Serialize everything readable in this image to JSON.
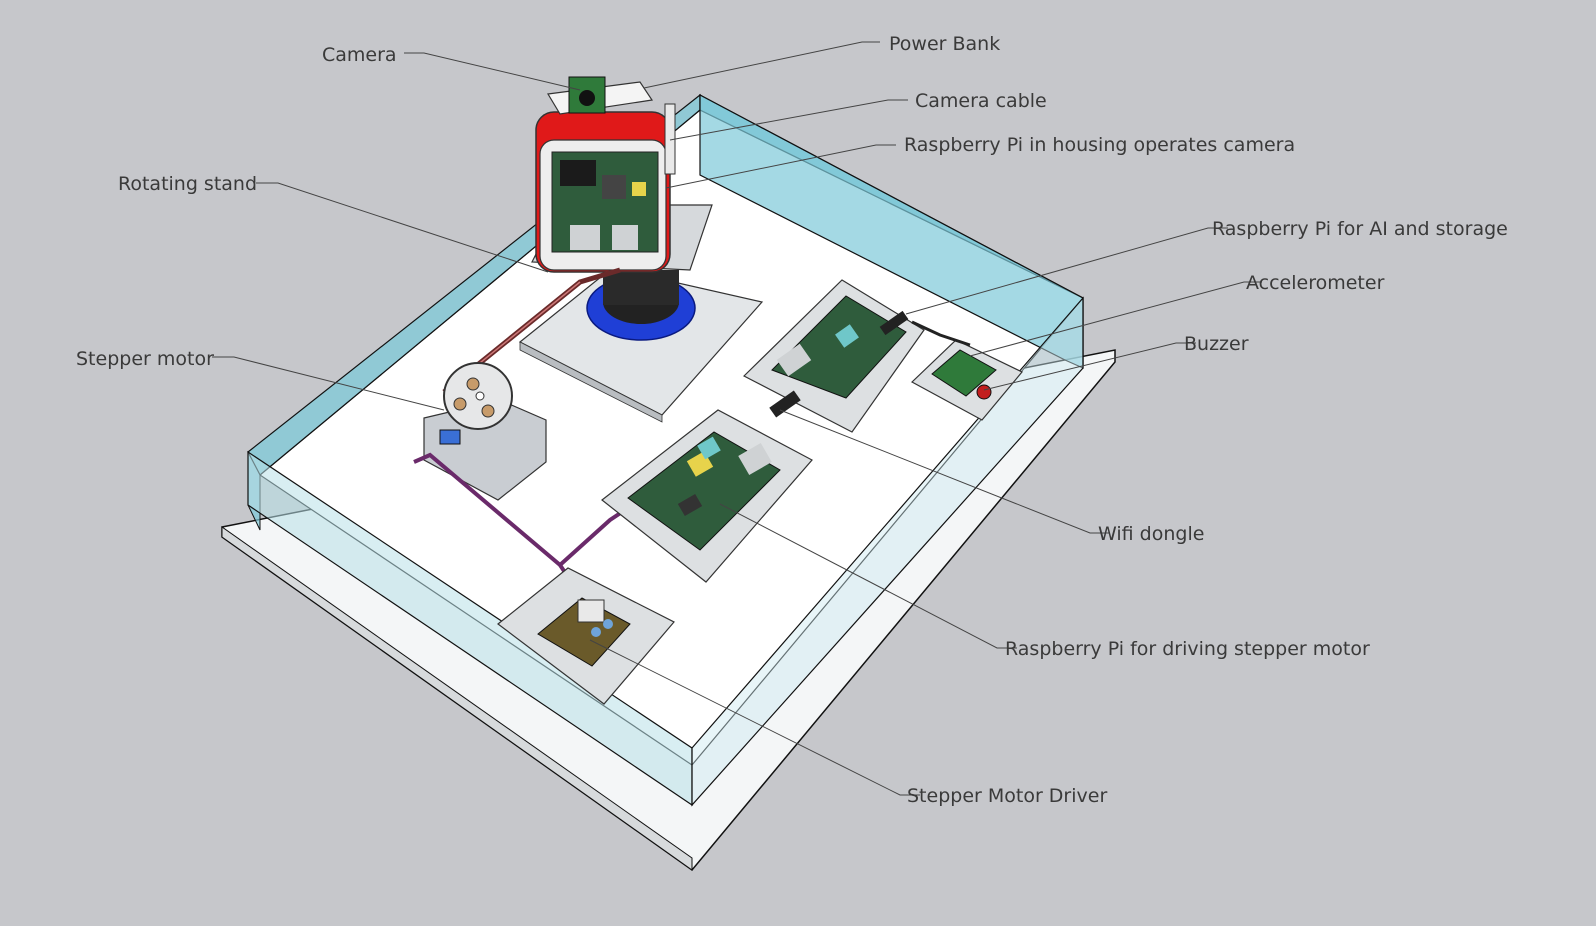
{
  "labels": {
    "camera": "Camera",
    "power_bank": "Power Bank",
    "camera_cable": "Camera cable",
    "rpi_camera": "Raspberry Pi in housing operates camera",
    "rotating_stand": "Rotating stand",
    "rpi_ai": "Raspberry Pi for AI and storage",
    "accelerometer": "Accelerometer",
    "stepper_motor": "Stepper motor",
    "buzzer": "Buzzer",
    "wifi_dongle": "Wifi dongle",
    "rpi_stepper": "Raspberry Pi for driving stepper motor",
    "stepper_driver": "Stepper Motor Driver"
  },
  "colors": {
    "background": "#c6c7cb",
    "glass": "#7ec9d8",
    "housing": "#e01919",
    "stand_ring": "#1f3fd6",
    "pcb": "#2f5c3c",
    "leader_line": "#444444"
  }
}
